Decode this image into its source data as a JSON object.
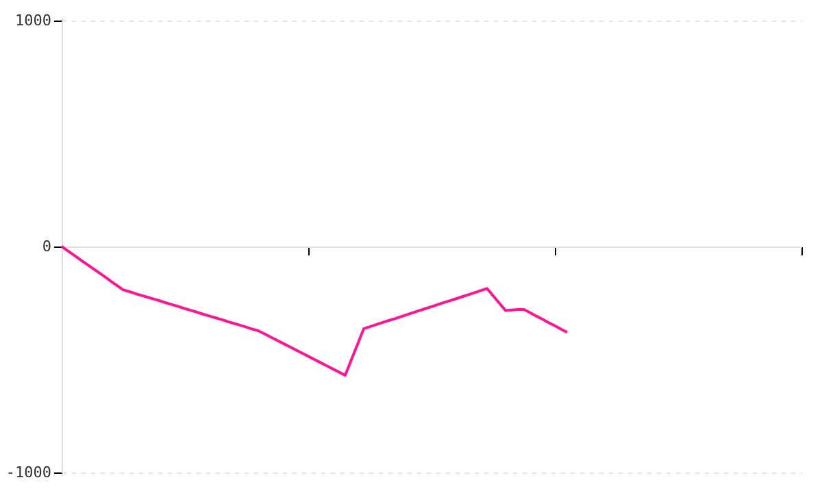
{
  "chart_data": {
    "type": "line",
    "categories": [
      null,
      null,
      null,
      null,
      null,
      null,
      null,
      null,
      null,
      null,
      null,
      null,
      null,
      null,
      null,
      null,
      null,
      null,
      null,
      null,
      null,
      null,
      null,
      null,
      null,
      null,
      null,
      null,
      null,
      null,
      null,
      null,
      null,
      null,
      null,
      null,
      null,
      null,
      null,
      null,
      null,
      null,
      null,
      null,
      null,
      null,
      null,
      null,
      null,
      null,
      null,
      null,
      null,
      null,
      null,
      null,
      null,
      null,
      null,
      null,
      null,
      null,
      null,
      null,
      null,
      null,
      null,
      null,
      null,
      null,
      null,
      null,
      null,
      null,
      null,
      null,
      null,
      null,
      null,
      null,
      null,
      null,
      null,
      null,
      null,
      null,
      null,
      null,
      null,
      null,
      null,
      null,
      null,
      null,
      null,
      null,
      null,
      null,
      null,
      null,
      null,
      null,
      null,
      null,
      null,
      null,
      null,
      null,
      null,
      null,
      null,
      null,
      null,
      null,
      null,
      null,
      null,
      null,
      null,
      null,
      null
    ],
    "series": [
      {
        "color": "#ff1493",
        "values": [
          0,
          -19,
          -38,
          -58,
          -77,
          -96,
          -115,
          -134,
          -154,
          -173,
          -192,
          -200,
          -209,
          -217,
          -225,
          -233,
          -241,
          -250,
          -258,
          -266,
          -275,
          -283,
          -291,
          -300,
          -308,
          -316,
          -324,
          -333,
          -341,
          -349,
          -357,
          -366,
          -374,
          -388,
          -402,
          -416,
          -430,
          -444,
          -458,
          -472,
          -486,
          -500,
          -514,
          -528,
          -542,
          -556,
          -570,
          -501,
          -433,
          -364,
          -355,
          -346,
          -337,
          -328,
          -320,
          -311,
          -302,
          -293,
          -284,
          -275,
          -266,
          -257,
          -248,
          -240,
          -231,
          -222,
          -213,
          -204,
          -195,
          -186,
          -218,
          -251,
          -283,
          -281,
          -279,
          -279,
          -293,
          -308,
          -322,
          -337,
          -351,
          -366,
          -380,
          null,
          null,
          null,
          null,
          null,
          null,
          null,
          null,
          null,
          null,
          null,
          null,
          null,
          null,
          null,
          null,
          null,
          null,
          null,
          null,
          null,
          null,
          null,
          null,
          null,
          null,
          null,
          null,
          null,
          null,
          null,
          null,
          null,
          null,
          null,
          null,
          null,
          null
        ]
      }
    ],
    "ylim": [
      -1000,
      1000
    ],
    "yticks": [
      -1000,
      0,
      1000
    ],
    "tick_labels": "y",
    "grid": "y",
    "line_style": "solid",
    "marker": "none"
  }
}
